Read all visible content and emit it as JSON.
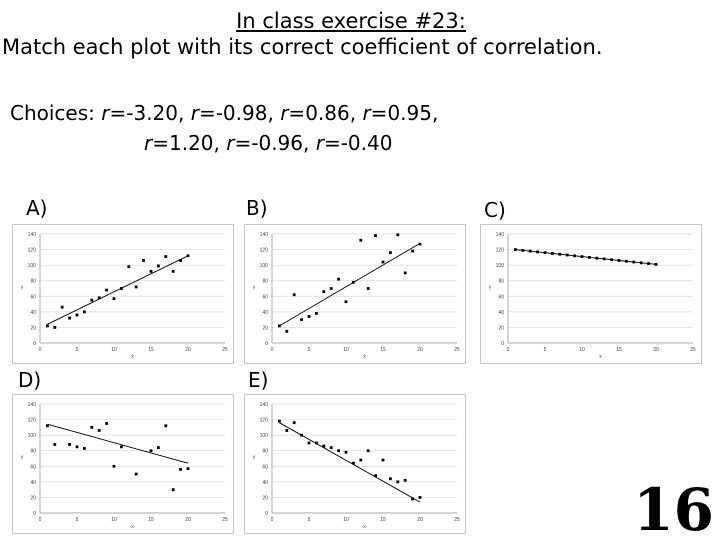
{
  "title": "In class exercise #23:",
  "subtitle": "Match each plot with its correct coefficient of correlation.",
  "choices": {
    "prefix": "Choices: ",
    "items": [
      "-3.20",
      "-0.98",
      "0.86",
      "0.95",
      "1.20",
      "-0.96",
      "-0.40"
    ]
  },
  "slide_number": "16",
  "chart_data": [
    {
      "id": "A",
      "label": "A)",
      "type": "scatter",
      "xlabel": "x",
      "ylabel": "y",
      "xlim": [
        0,
        25
      ],
      "ylim": [
        0,
        140
      ],
      "xticks": [
        "0",
        "5",
        "10",
        "15",
        "20",
        "25"
      ],
      "yticks": [
        "0",
        "20",
        "40",
        "60",
        "80",
        "100",
        "120",
        "140"
      ],
      "grid": true,
      "points": [
        [
          1,
          22
        ],
        [
          2,
          20
        ],
        [
          3,
          46
        ],
        [
          4,
          32
        ],
        [
          5,
          36
        ],
        [
          6,
          40
        ],
        [
          7,
          55
        ],
        [
          8,
          58
        ],
        [
          9,
          68
        ],
        [
          10,
          57
        ],
        [
          11,
          70
        ],
        [
          12,
          98
        ],
        [
          13,
          72
        ],
        [
          14,
          106
        ],
        [
          15,
          92
        ],
        [
          16,
          99
        ],
        [
          17,
          111
        ],
        [
          18,
          92
        ],
        [
          19,
          106
        ],
        [
          20,
          112
        ]
      ],
      "trendline": [
        [
          1,
          24
        ],
        [
          20,
          112
        ]
      ]
    },
    {
      "id": "B",
      "label": "B)",
      "type": "scatter",
      "xlabel": "x",
      "ylabel": "y",
      "xlim": [
        0,
        25
      ],
      "ylim": [
        0,
        140
      ],
      "xticks": [
        "0",
        "5",
        "10",
        "15",
        "20",
        "25"
      ],
      "yticks": [
        "0",
        "20",
        "40",
        "60",
        "80",
        "100",
        "120",
        "140"
      ],
      "grid": true,
      "points": [
        [
          1,
          22
        ],
        [
          2,
          15
        ],
        [
          3,
          62
        ],
        [
          4,
          30
        ],
        [
          5,
          34
        ],
        [
          6,
          38
        ],
        [
          7,
          66
        ],
        [
          8,
          70
        ],
        [
          9,
          82
        ],
        [
          10,
          53
        ],
        [
          11,
          78
        ],
        [
          12,
          132
        ],
        [
          13,
          70
        ],
        [
          14,
          138
        ],
        [
          15,
          104
        ],
        [
          16,
          116
        ],
        [
          17,
          139
        ],
        [
          18,
          90
        ],
        [
          19,
          118
        ],
        [
          20,
          127
        ]
      ],
      "trendline": [
        [
          1,
          22
        ],
        [
          20,
          128
        ]
      ]
    },
    {
      "id": "C",
      "label": "C)",
      "type": "scatter",
      "xlabel": "x",
      "ylabel": "y",
      "xlim": [
        0,
        25
      ],
      "ylim": [
        0,
        140
      ],
      "xticks": [
        "0",
        "5",
        "10",
        "15",
        "20",
        "25"
      ],
      "yticks": [
        "0",
        "20",
        "40",
        "60",
        "80",
        "100",
        "120",
        "140"
      ],
      "grid": true,
      "points": [
        [
          1,
          120
        ],
        [
          2,
          119
        ],
        [
          3,
          118
        ],
        [
          4,
          117
        ],
        [
          5,
          116
        ],
        [
          6,
          115
        ],
        [
          7,
          114
        ],
        [
          8,
          113
        ],
        [
          9,
          112
        ],
        [
          10,
          111
        ],
        [
          11,
          110
        ],
        [
          12,
          109
        ],
        [
          13,
          108
        ],
        [
          14,
          107
        ],
        [
          15,
          106
        ],
        [
          16,
          105
        ],
        [
          17,
          104
        ],
        [
          18,
          103
        ],
        [
          19,
          102
        ],
        [
          20,
          101
        ]
      ],
      "trendline": [
        [
          1,
          120
        ],
        [
          20,
          101
        ]
      ]
    },
    {
      "id": "D",
      "label": "D)",
      "type": "scatter",
      "xlabel": "x",
      "ylabel": "y",
      "xlim": [
        0,
        25
      ],
      "ylim": [
        0,
        140
      ],
      "xticks": [
        "0",
        "5",
        "10",
        "15",
        "20",
        "25"
      ],
      "yticks": [
        "0",
        "20",
        "40",
        "60",
        "80",
        "100",
        "120",
        "140"
      ],
      "grid": true,
      "points": [
        [
          1,
          112
        ],
        [
          2,
          88
        ],
        [
          4,
          88
        ],
        [
          5,
          85
        ],
        [
          6,
          83
        ],
        [
          7,
          110
        ],
        [
          8,
          106
        ],
        [
          9,
          115
        ],
        [
          10,
          60
        ],
        [
          11,
          85
        ],
        [
          13,
          50
        ],
        [
          15,
          80
        ],
        [
          16,
          84
        ],
        [
          17,
          112
        ],
        [
          18,
          30
        ],
        [
          19,
          56
        ],
        [
          20,
          57
        ]
      ],
      "trendline": [
        [
          1,
          114
        ],
        [
          20,
          64
        ]
      ]
    },
    {
      "id": "E",
      "label": "E)",
      "type": "scatter",
      "xlabel": "x",
      "ylabel": "y",
      "xlim": [
        0,
        25
      ],
      "ylim": [
        0,
        140
      ],
      "xticks": [
        "0",
        "5",
        "10",
        "15",
        "20",
        "25"
      ],
      "yticks": [
        "0",
        "20",
        "40",
        "60",
        "80",
        "100",
        "120",
        "140"
      ],
      "grid": true,
      "points": [
        [
          1,
          118
        ],
        [
          2,
          106
        ],
        [
          3,
          116
        ],
        [
          4,
          100
        ],
        [
          5,
          90
        ],
        [
          6,
          90
        ],
        [
          7,
          86
        ],
        [
          8,
          84
        ],
        [
          9,
          80
        ],
        [
          10,
          78
        ],
        [
          11,
          64
        ],
        [
          12,
          68
        ],
        [
          13,
          80
        ],
        [
          14,
          48
        ],
        [
          15,
          68
        ],
        [
          16,
          44
        ],
        [
          17,
          40
        ],
        [
          18,
          42
        ],
        [
          19,
          18
        ],
        [
          20,
          20
        ]
      ],
      "trendline": [
        [
          1,
          116
        ],
        [
          20,
          14
        ]
      ]
    }
  ]
}
